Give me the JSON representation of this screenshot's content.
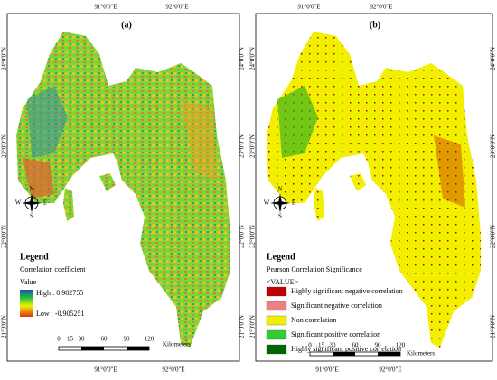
{
  "panels": [
    {
      "label": "(a)",
      "top_ticks": [
        "91°0'0\"E",
        "92°0'0\"E"
      ],
      "bottom_ticks": [
        "91°0'0\"E",
        "92°0'0\"E"
      ],
      "left_ticks": [
        "24°0'0\"N",
        "23°0'0\"N",
        "22°0'0\"N",
        "21°0'0\"N"
      ],
      "right_ticks": [
        "24°0'0\"N",
        "23°0'0\"N",
        "22°0'0\"N",
        "21°0'0\"N"
      ],
      "north": {
        "n": "N",
        "s": "S",
        "e": "E",
        "w": "W"
      },
      "legend": {
        "title": "Legend",
        "subtitle": "Correlation coefficient",
        "value_label": "Value",
        "high": "High : 0.982755",
        "low": "Low : -0.905251"
      },
      "scale": {
        "ticks": [
          "0",
          "15",
          "30",
          "60",
          "90",
          "120"
        ],
        "unit": "Kilometers"
      }
    },
    {
      "label": "(b)",
      "top_ticks": [
        "91°0'0\"E",
        "92°0'0\"E"
      ],
      "bottom_ticks": [
        "91°0'0\"E",
        "92°0'0\"E"
      ],
      "left_ticks": [
        "24°0'0\"N",
        "23°0'0\"N",
        "22°0'0\"N",
        "21°0'0\"N"
      ],
      "right_ticks": [
        "24°0'0\"N",
        "23°0'0\"N",
        "22°0'0\"N",
        "21°0'0\"N"
      ],
      "north": {
        "n": "N",
        "s": "S",
        "e": "E",
        "w": "W"
      },
      "legend": {
        "title": "Legend",
        "subtitle": "Pearson Correlation Significance",
        "value_label": "<VALUE>",
        "items": [
          {
            "label": "Highly significant negative correlation",
            "color": "#c00000"
          },
          {
            "label": "Significant negative correlation",
            "color": "#f08080"
          },
          {
            "label": "Non correlation",
            "color": "#f0f000"
          },
          {
            "label": "Significant positive correlation",
            "color": "#33cc33"
          },
          {
            "label": "Highly significant positive correlation",
            "color": "#006600"
          }
        ]
      },
      "scale": {
        "ticks": [
          "0",
          "15",
          "30",
          "60",
          "90",
          "120"
        ],
        "unit": "Kilometers"
      }
    }
  ]
}
